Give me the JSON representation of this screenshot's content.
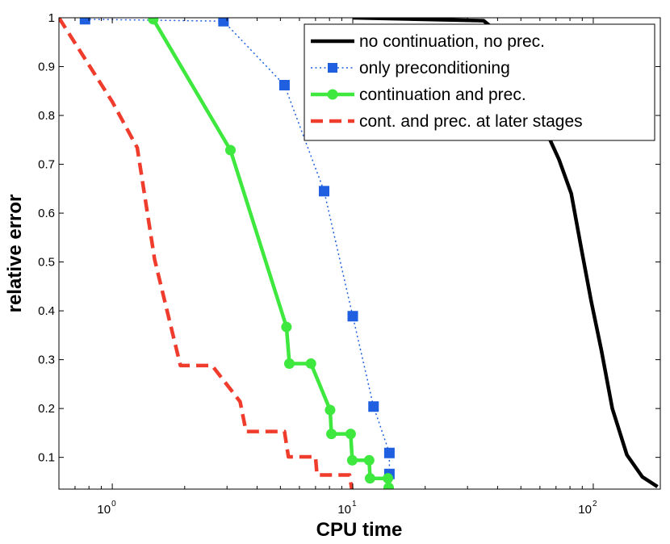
{
  "chart_data": {
    "type": "line",
    "xlabel": "CPU time",
    "ylabel": "relative error",
    "x_scale": "log",
    "xlim": [
      0.6,
      190
    ],
    "ylim": [
      0.035,
      1.0
    ],
    "x_ticks": [
      {
        "base": "10",
        "exp": "0",
        "value": 1
      },
      {
        "base": "10",
        "exp": "1",
        "value": 10
      },
      {
        "base": "10",
        "exp": "2",
        "value": 100
      }
    ],
    "y_ticks": [
      {
        "label": "0.1",
        "value": 0.1
      },
      {
        "label": "0.2",
        "value": 0.2
      },
      {
        "label": "0.3",
        "value": 0.3
      },
      {
        "label": "0.4",
        "value": 0.4
      },
      {
        "label": "0.5",
        "value": 0.5
      },
      {
        "label": "0.6",
        "value": 0.6
      },
      {
        "label": "0.7",
        "value": 0.7
      },
      {
        "label": "0.8",
        "value": 0.8
      },
      {
        "label": "0.9",
        "value": 0.9
      },
      {
        "label": "1",
        "value": 1.0
      }
    ],
    "grid": false,
    "legend_position": "top-right",
    "series": [
      {
        "name": "no continuation, no prec.",
        "color": "#000000",
        "style": "solid",
        "marker": "none",
        "points": [
          [
            10,
            1.0
          ],
          [
            35,
            0.994
          ],
          [
            45,
            0.95
          ],
          [
            55,
            0.86
          ],
          [
            62,
            0.78
          ],
          [
            72,
            0.71
          ],
          [
            81,
            0.64
          ],
          [
            89,
            0.53
          ],
          [
            98,
            0.42
          ],
          [
            108,
            0.32
          ],
          [
            120,
            0.2
          ],
          [
            138,
            0.105
          ],
          [
            160,
            0.06
          ],
          [
            185,
            0.04
          ]
        ]
      },
      {
        "name": "only preconditioning",
        "color": "#1f5fe0",
        "style": "dotted",
        "marker": "square",
        "points": [
          [
            0.77,
            0.997
          ],
          [
            2.9,
            0.993
          ],
          [
            5.2,
            0.862
          ],
          [
            7.6,
            0.645
          ],
          [
            10.0,
            0.389
          ],
          [
            12.2,
            0.204
          ],
          [
            14.2,
            0.109
          ],
          [
            14.2,
            0.066
          ]
        ]
      },
      {
        "name": "continuation and prec.",
        "color": "#3ee83e",
        "style": "solid",
        "marker": "circle",
        "points": [
          [
            1.48,
            0.997
          ],
          [
            3.1,
            0.729
          ],
          [
            5.3,
            0.367
          ],
          [
            5.45,
            0.292
          ],
          [
            6.7,
            0.292
          ],
          [
            8.05,
            0.197
          ],
          [
            8.15,
            0.148
          ],
          [
            9.8,
            0.148
          ],
          [
            9.95,
            0.094
          ],
          [
            11.7,
            0.094
          ],
          [
            11.8,
            0.057
          ],
          [
            14.0,
            0.057
          ],
          [
            14.1,
            0.038
          ]
        ]
      },
      {
        "name": "cont. and prec. at later stages",
        "color": "#f03c2c",
        "style": "dashed",
        "marker": "none",
        "points": [
          [
            0.6,
            1.0
          ],
          [
            1.0,
            0.828
          ],
          [
            1.27,
            0.734
          ],
          [
            1.5,
            0.505
          ],
          [
            1.92,
            0.288
          ],
          [
            2.6,
            0.288
          ],
          [
            3.4,
            0.214
          ],
          [
            3.6,
            0.153
          ],
          [
            5.2,
            0.153
          ],
          [
            5.4,
            0.101
          ],
          [
            7.0,
            0.101
          ],
          [
            7.1,
            0.064
          ],
          [
            9.7,
            0.064
          ],
          [
            9.9,
            0.035
          ]
        ]
      }
    ]
  }
}
